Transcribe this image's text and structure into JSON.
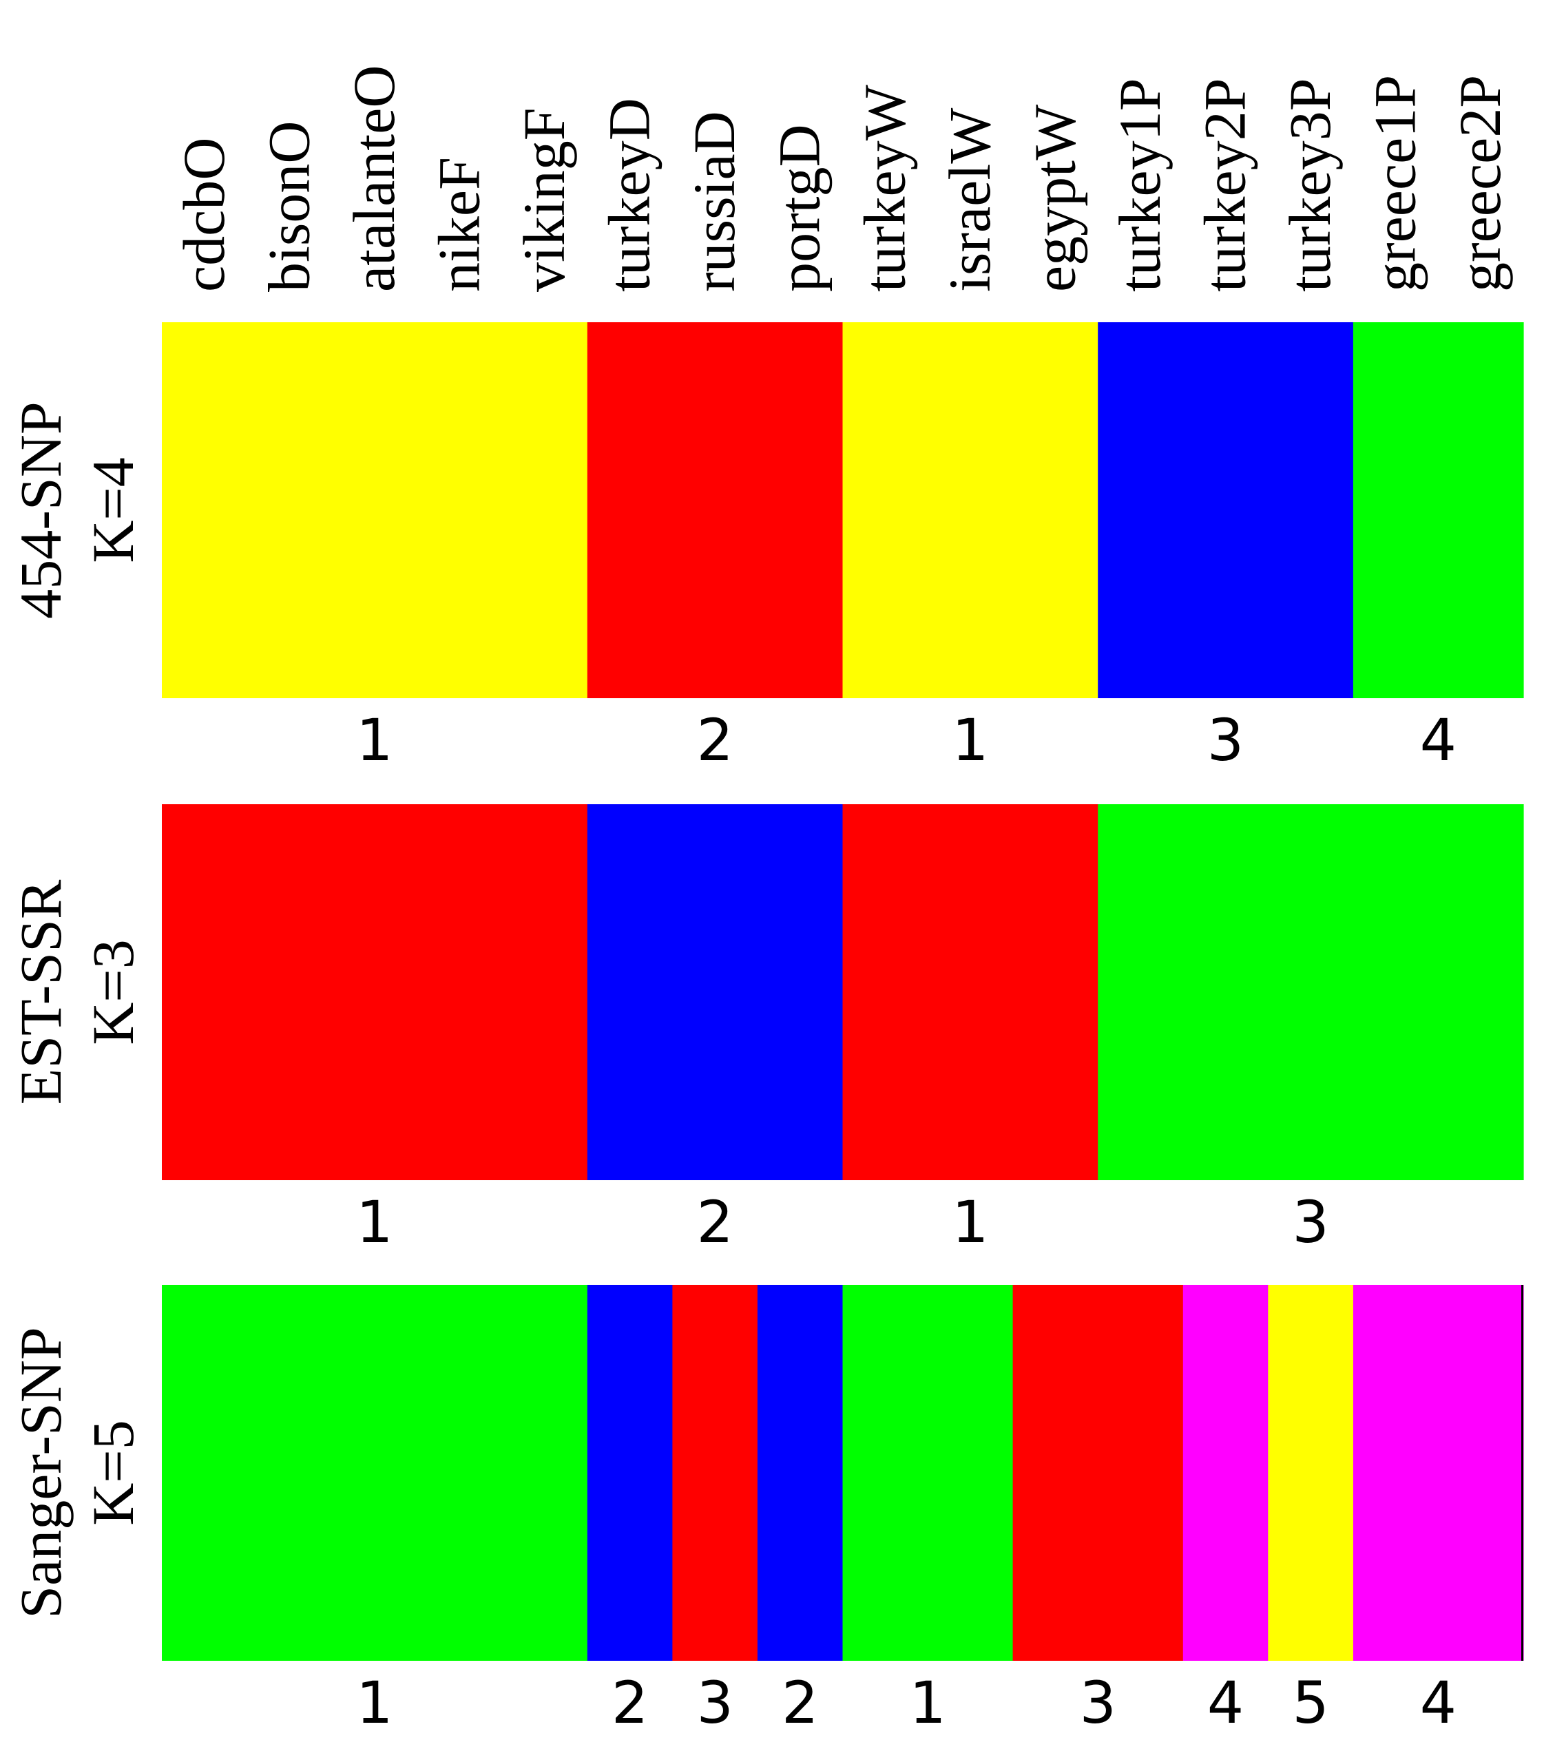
{
  "chart_data": {
    "type": "bar",
    "stacked_composition": true,
    "samples": [
      "cdcbO",
      "bisonO",
      "atalanteO",
      "nikeF",
      "vikingF",
      "turkeyD",
      "russiaD",
      "portgD",
      "turkeyW",
      "israelW",
      "egyptW",
      "turkey1P",
      "turkey2P",
      "turkey3P",
      "greece1P",
      "greece2P"
    ],
    "colors": {
      "yellow": "#ffff00",
      "red": "#ff0000",
      "blue": "#0000ff",
      "green": "#00ff00",
      "magenta": "#ff00ff"
    },
    "panels": [
      {
        "label_line1": "454-SNP",
        "label_line2": "K=4",
        "segments": [
          {
            "from": 0,
            "to": 5,
            "color": "yellow",
            "cluster": "1"
          },
          {
            "from": 5,
            "to": 8,
            "color": "red",
            "cluster": "2"
          },
          {
            "from": 8,
            "to": 11,
            "color": "yellow",
            "cluster": "1"
          },
          {
            "from": 11,
            "to": 14,
            "color": "blue",
            "cluster": "3"
          },
          {
            "from": 14,
            "to": 16,
            "color": "green",
            "cluster": "4"
          }
        ]
      },
      {
        "label_line1": "EST-SSR",
        "label_line2": "K=3",
        "segments": [
          {
            "from": 0,
            "to": 5,
            "color": "red",
            "cluster": "1"
          },
          {
            "from": 5,
            "to": 8,
            "color": "blue",
            "cluster": "2"
          },
          {
            "from": 8,
            "to": 11,
            "color": "red",
            "cluster": "1"
          },
          {
            "from": 11,
            "to": 16,
            "color": "green",
            "cluster": "3"
          }
        ]
      },
      {
        "label_line1": "Sanger-SNP",
        "label_line2": "K=5",
        "segments": [
          {
            "from": 0,
            "to": 5,
            "color": "green",
            "cluster": "1"
          },
          {
            "from": 5,
            "to": 6,
            "color": "blue",
            "cluster": "2"
          },
          {
            "from": 6,
            "to": 7,
            "color": "red",
            "cluster": "3"
          },
          {
            "from": 7,
            "to": 8,
            "color": "blue",
            "cluster": "2"
          },
          {
            "from": 8,
            "to": 10,
            "color": "green",
            "cluster": "1"
          },
          {
            "from": 10,
            "to": 12,
            "color": "red",
            "cluster": "3"
          },
          {
            "from": 12,
            "to": 13,
            "color": "magenta",
            "cluster": "4"
          },
          {
            "from": 13,
            "to": 14,
            "color": "yellow",
            "cluster": "5"
          },
          {
            "from": 14,
            "to": 16,
            "color": "magenta",
            "cluster": "4"
          }
        ]
      }
    ]
  }
}
